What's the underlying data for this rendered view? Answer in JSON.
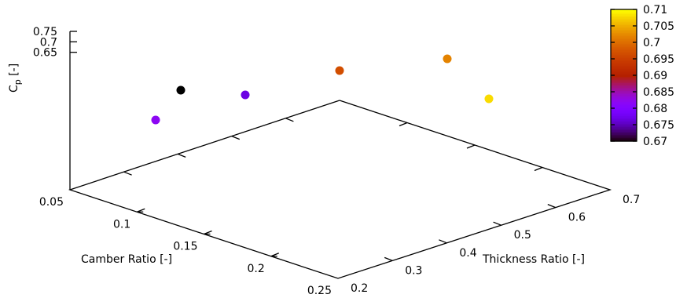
{
  "chart_data": {
    "type": "scatter",
    "ylabel_main": "C",
    "ylabel_sub": "p",
    "ylabel_unit": " [-]",
    "xlabel": "Camber Ratio [-]",
    "zlabel": "Thickness Ratio [-]",
    "camber_ticks": [
      "0.05",
      "0.1",
      "0.15",
      "0.2",
      "0.25"
    ],
    "thickness_ticks": [
      "0.2",
      "0.3",
      "0.4",
      "0.5",
      "0.6",
      "0.7"
    ],
    "cp_ticks": [
      "0.65",
      "0.7",
      "0.75"
    ],
    "camber_range": [
      0.05,
      0.25
    ],
    "thickness_range": [
      0.2,
      0.7
    ],
    "cp_range": [
      0.63,
      0.75
    ],
    "colorbar_ticks": [
      "0.67",
      "0.675",
      "0.68",
      "0.685",
      "0.69",
      "0.695",
      "0.7",
      "0.705",
      "0.71"
    ],
    "colorbar_range": [
      0.67,
      0.71
    ],
    "colormap": "gnuplot-rgb-7-5-15",
    "points": [
      {
        "camber": 0.05,
        "thickness": 0.25,
        "cp": 0.682
      },
      {
        "camber": 0.07,
        "thickness": 0.3,
        "cp": 0.67
      },
      {
        "camber": 0.06,
        "thickness": 0.4,
        "cp": 0.677
      },
      {
        "camber": 0.05,
        "thickness": 0.55,
        "cp": 0.697
      },
      {
        "camber": 0.05,
        "thickness": 0.7,
        "cp": 0.702
      },
      {
        "camber": 0.09,
        "thickness": 0.7,
        "cp": 0.708
      }
    ]
  }
}
